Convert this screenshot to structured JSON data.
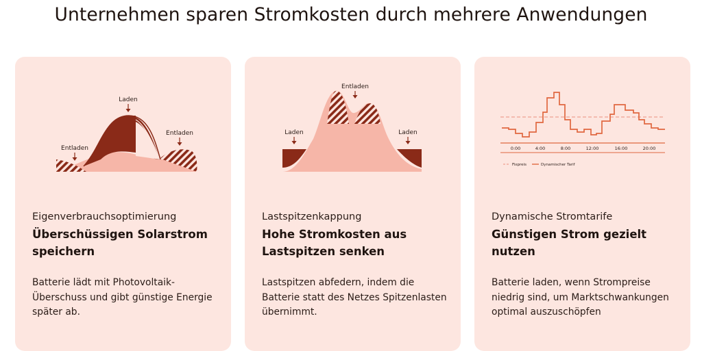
{
  "page": {
    "title": "Unternehmen sparen Stromkosten durch mehrere Anwendungen"
  },
  "colors": {
    "card_bg": "#fde6e0",
    "dark": "#8a2a18",
    "light_fill": "#f6b6a8",
    "tariff_line": "#e0673f",
    "fixed_line": "#f0a090"
  },
  "cards": [
    {
      "eyebrow": "Eigenverbrauchsoptimierung",
      "headline": "Überschüssigen Solarstrom speichern",
      "description": "Batterie lädt mit Photovoltaik-Überschuss und gibt günstige Energie später ab.",
      "illustration": {
        "label_charge": "Laden",
        "label_discharge_left": "Entladen",
        "label_discharge_right": "Entladen"
      }
    },
    {
      "eyebrow": "Lastspitzenkappung",
      "headline": "Hohe Stromkosten aus Lastspitzen senken",
      "description": "Lastspitzen abfedern, indem die Batterie statt des Netzes Spitzenlasten übernimmt.",
      "illustration": {
        "label_discharge": "Entladen",
        "label_charge_left": "Laden",
        "label_charge_right": "Laden"
      }
    },
    {
      "eyebrow": "Dynamische Stromtarife",
      "headline": "Günstigen Strom gezielt nutzen",
      "description": "Batterie laden, wenn Strompreise niedrig sind, um Marktschwankungen optimal auszuschöpfen",
      "illustration": {
        "ticks": [
          "0:00",
          "4:00",
          "8:00",
          "12:00",
          "16:00",
          "20:00"
        ],
        "legend_fixed": "Fixpreis",
        "legend_dynamic": "Dynamischer Tarif"
      }
    }
  ]
}
